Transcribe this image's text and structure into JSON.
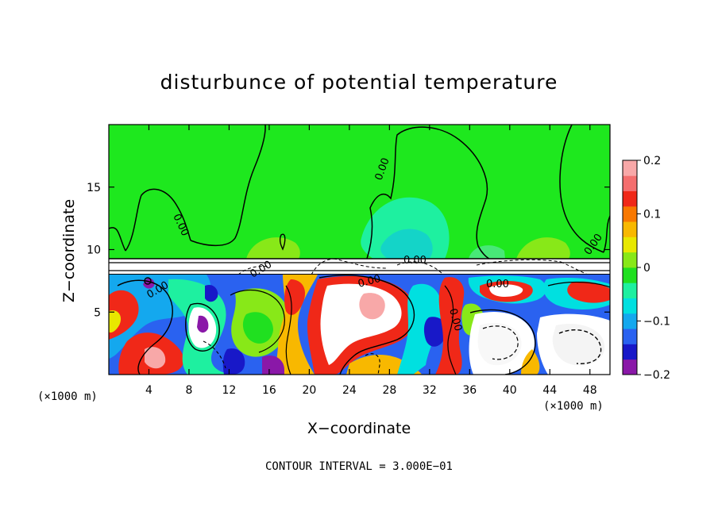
{
  "chart_data": {
    "type": "heatmap",
    "title": "disturbunce of potential temperature",
    "xlabel": "X−coordinate",
    "ylabel": "Z−coordinate",
    "x_unit_left": "(×1000 m)",
    "x_unit_right": "(×1000 m)",
    "x_ticks": [
      4,
      8,
      12,
      16,
      20,
      24,
      28,
      32,
      36,
      40,
      44,
      48
    ],
    "y_ticks": [
      5,
      10,
      15
    ],
    "xlim": [
      0,
      50
    ],
    "ylim": [
      0,
      20
    ],
    "colorbar": {
      "ticks": [
        "0.2",
        "0.1",
        "0",
        "−0.1",
        "−0.2"
      ],
      "tick_values": [
        0.2,
        0.1,
        0,
        -0.1,
        -0.2
      ],
      "range": [
        -0.2,
        0.2
      ],
      "colors": [
        "#8a18a8",
        "#1818c8",
        "#2a62f0",
        "#14a8ee",
        "#00e0e0",
        "#1ef0a0",
        "#20e020",
        "#88e818",
        "#e8e800",
        "#f8b800",
        "#f87800",
        "#f02818",
        "#f46e6e",
        "#f8a8a8"
      ]
    },
    "contour_labels": [
      "0.00",
      "0.00",
      "0.00",
      "0.00",
      "0.00",
      "0.00",
      "0.00",
      "0.00",
      "0.00"
    ],
    "contour_interval_text": "CONTOUR INTERVAL = 3.000E−01"
  }
}
